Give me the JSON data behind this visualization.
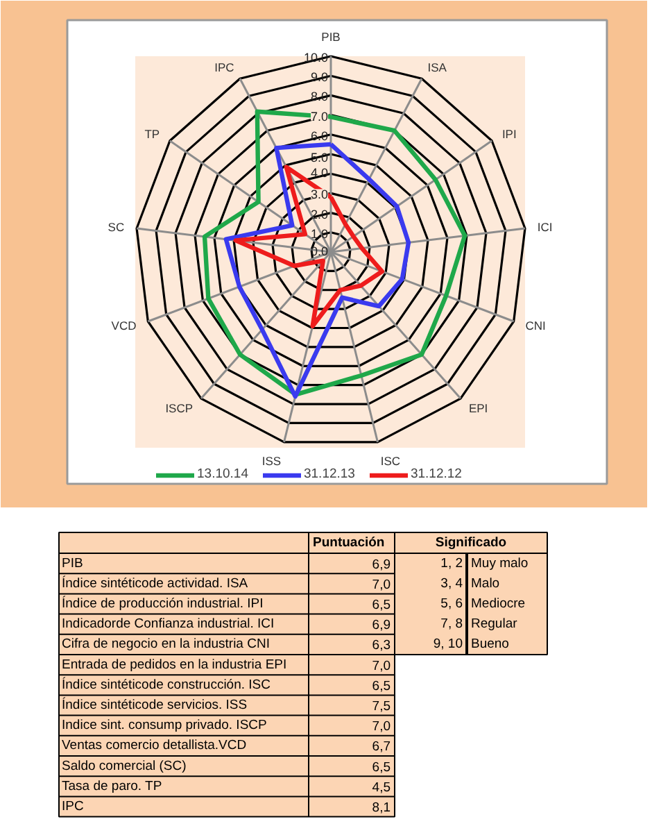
{
  "chart_data": {
    "type": "radar",
    "categories": [
      "PIB",
      "ISA",
      "IPI",
      "ICI",
      "CNI",
      "EPI",
      "ISC",
      "ISS",
      "ISCP",
      "VCD",
      "SC",
      "TP",
      "IPC"
    ],
    "ylim": [
      0,
      10
    ],
    "yticks": [
      {
        "value": 0,
        "label": "0.0"
      },
      {
        "value": 1,
        "label": "1.0"
      },
      {
        "value": 2,
        "label": "2.0"
      },
      {
        "value": 3,
        "label": "3.0"
      },
      {
        "value": 4,
        "label": "4.0"
      },
      {
        "value": 5,
        "label": "5.0"
      },
      {
        "value": 6,
        "label": "6.0"
      },
      {
        "value": 7,
        "label": "7.0"
      },
      {
        "value": 8,
        "label": "8.0"
      },
      {
        "value": 9,
        "label": "9.0"
      },
      {
        "value": 10,
        "label": "10.0"
      }
    ],
    "grid": true,
    "legend": "bottom",
    "series": [
      {
        "name": "13.10.14",
        "color": "#1fa84a",
        "values": [
          6.9,
          7.0,
          6.5,
          6.9,
          6.3,
          7.0,
          6.5,
          7.5,
          7.0,
          6.7,
          6.5,
          4.5,
          8.1
        ]
      },
      {
        "name": "31.12.13",
        "color": "#3a3aef",
        "values": [
          5.5,
          4.2,
          4.1,
          4.0,
          3.9,
          3.7,
          2.4,
          7.6,
          5.3,
          5.0,
          5.4,
          2.4,
          6.0
        ]
      },
      {
        "name": "31.12.12",
        "color": "#ee1c1c",
        "values": [
          2.8,
          1.6,
          1.4,
          1.6,
          2.8,
          2.3,
          2.0,
          3.9,
          0.6,
          2.0,
          4.9,
          1.6,
          4.9
        ]
      }
    ],
    "annotations": [
      "Puntuación",
      "PIB",
      "Índice sintéticode actividad. ISA",
      "Índice de producción industrial. IPI",
      "Indicadorde Confianza industrial. ICI",
      "Cifra de negocio en la industria CNI",
      "Entrada de pedidos en la industria EPI",
      "Índice sintéticode construcción. ISC",
      "Índice sintéticode servicios. ISS",
      "Indice sint. consump privado. ISCP",
      "Ventas comercio detallista.VCD",
      "Saldo comercial (SC)",
      "Tasa de paro. TP",
      "IPC",
      "6,9",
      "7,0",
      "6,5",
      "6,9",
      "6,3",
      "7,0",
      "6,5",
      "7,5",
      "7,0",
      "6,7",
      "6,5",
      "4,5",
      "8,1",
      "Significado",
      "1, 2",
      "Muy malo",
      "3, 4",
      "Malo",
      "5, 6",
      "Mediocre",
      "7, 8",
      "Regular",
      "9, 10",
      "Bueno"
    ]
  }
}
